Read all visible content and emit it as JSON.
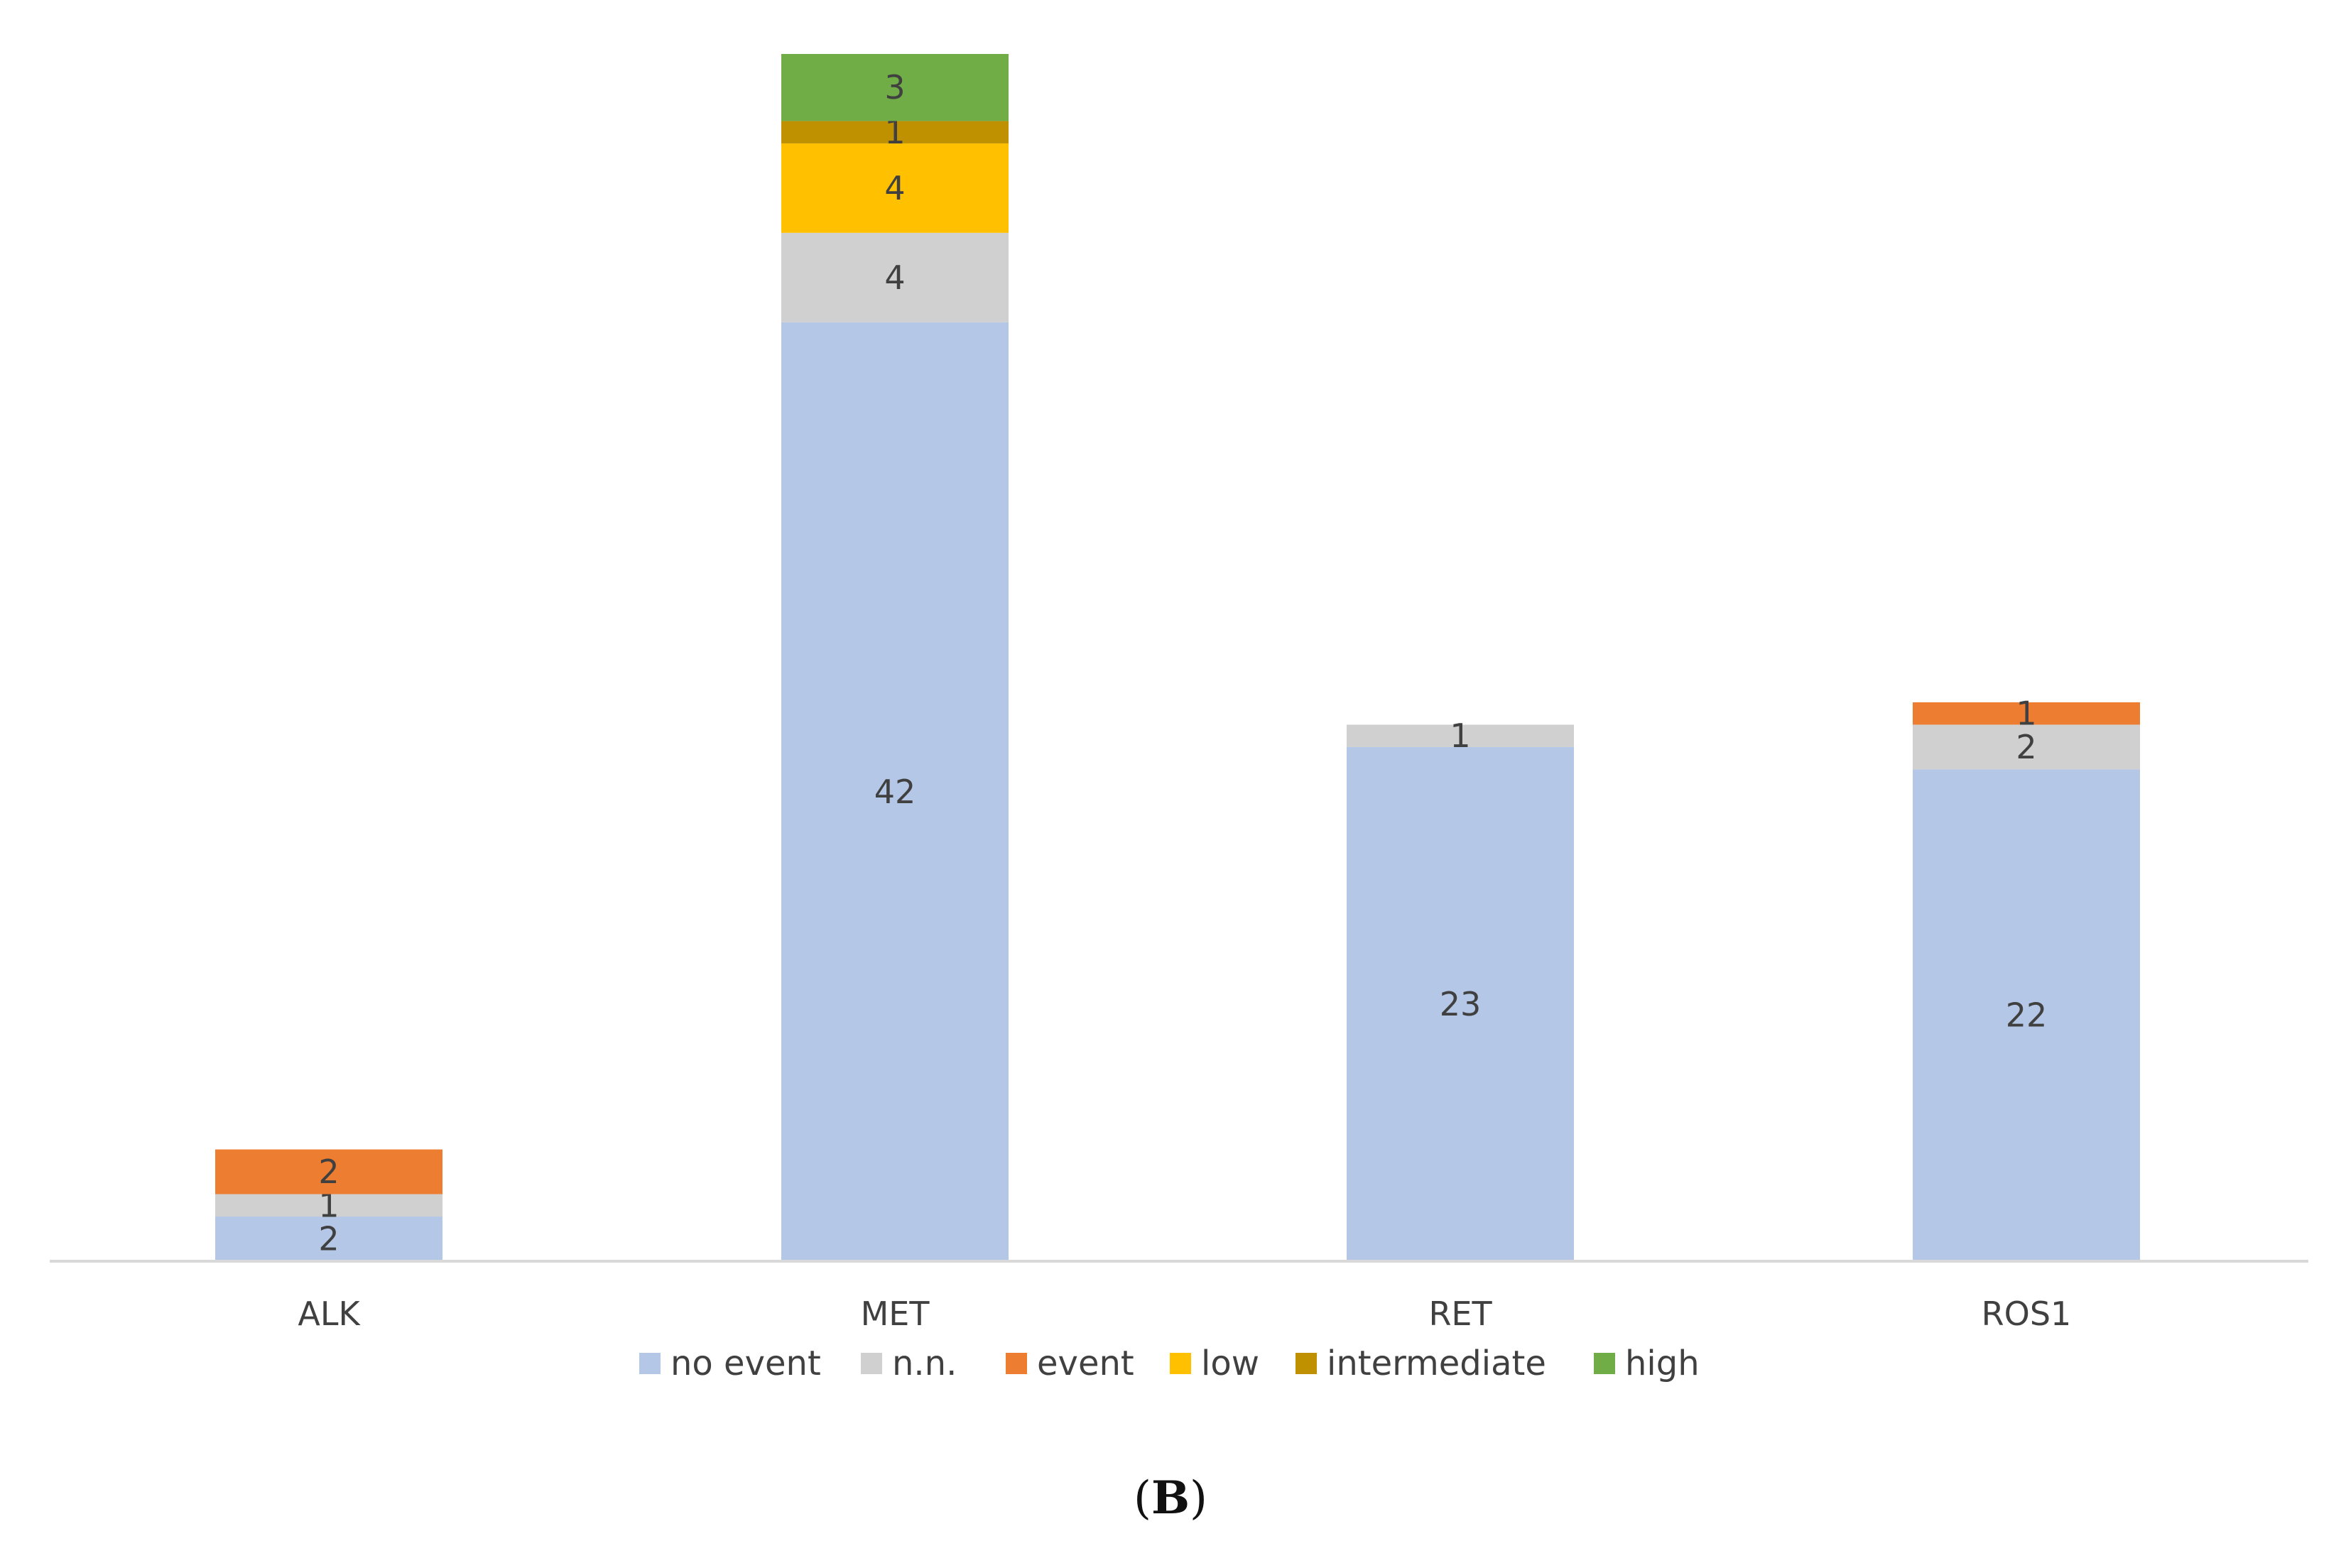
{
  "chart_data": {
    "type": "bar",
    "stacked": true,
    "categories": [
      "ALK",
      "MET",
      "RET",
      "ROS1"
    ],
    "series": [
      {
        "name": "no event",
        "color": "#B4C7E7",
        "values": [
          2,
          42,
          23,
          22
        ]
      },
      {
        "name": "n.n.",
        "color": "#D0D0D0",
        "values": [
          1,
          4,
          1,
          2
        ]
      },
      {
        "name": "event",
        "color": "#ED7D31",
        "values": [
          2,
          0,
          0,
          1
        ]
      },
      {
        "name": "low",
        "color": "#FFC000",
        "values": [
          0,
          4,
          0,
          0
        ]
      },
      {
        "name": "intermediate",
        "color": "#BF9000",
        "values": [
          0,
          1,
          0,
          0
        ]
      },
      {
        "name": "high",
        "color": "#70AD47",
        "values": [
          0,
          3,
          0,
          0
        ]
      }
    ],
    "data_labels": true,
    "legend_position": "bottom",
    "grid": false,
    "ylim": [
      0,
      54
    ]
  },
  "panel_label": {
    "open": "(",
    "letter": "B",
    "close": ")"
  }
}
